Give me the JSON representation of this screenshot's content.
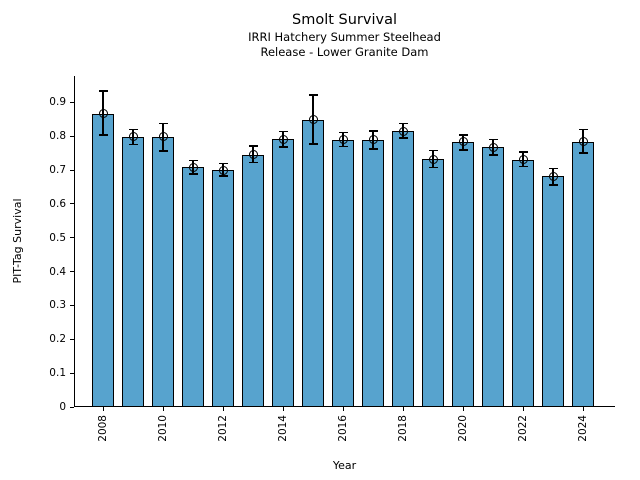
{
  "chart_data": {
    "type": "bar",
    "title": "Smolt Survival",
    "subtitle_line1": "IRRI Hatchery Summer Steelhead",
    "subtitle_line2": "Release - Lower Granite Dam",
    "xlabel": "Year",
    "ylabel": "PIT-Tag Survival",
    "categories": [
      2008,
      2009,
      2010,
      2011,
      2012,
      2013,
      2014,
      2015,
      2016,
      2017,
      2018,
      2019,
      2020,
      2021,
      2022,
      2023,
      2024
    ],
    "values": [
      0.866,
      0.798,
      0.798,
      0.708,
      0.7,
      0.746,
      0.791,
      0.849,
      0.789,
      0.789,
      0.815,
      0.732,
      0.783,
      0.767,
      0.731,
      0.682,
      0.784
    ],
    "error_low": [
      0.803,
      0.776,
      0.757,
      0.688,
      0.682,
      0.722,
      0.768,
      0.777,
      0.769,
      0.762,
      0.795,
      0.708,
      0.759,
      0.744,
      0.71,
      0.656,
      0.751
    ],
    "error_high": [
      0.933,
      0.82,
      0.838,
      0.728,
      0.72,
      0.771,
      0.814,
      0.922,
      0.811,
      0.816,
      0.838,
      0.758,
      0.803,
      0.79,
      0.754,
      0.705,
      0.82
    ],
    "ylim": [
      0,
      0.978
    ],
    "ytick_labels": [
      "0",
      "0.1",
      "0.2",
      "0.3",
      "0.4",
      "0.5",
      "0.6",
      "0.7",
      "0.8",
      "0.9"
    ],
    "ytick_values": [
      0,
      0.1,
      0.2,
      0.3,
      0.4,
      0.5,
      0.6,
      0.7,
      0.8,
      0.9
    ],
    "xtick_years": [
      2008,
      2010,
      2012,
      2014,
      2016,
      2018,
      2020,
      2022,
      2024
    ],
    "grid": false,
    "legend_position": "none",
    "marker_style": "open-circle",
    "bar_color": "#57A3CE",
    "bar_edge_color": "#000000",
    "error_bar_color": "#000000",
    "background_color": "#ffffff"
  }
}
